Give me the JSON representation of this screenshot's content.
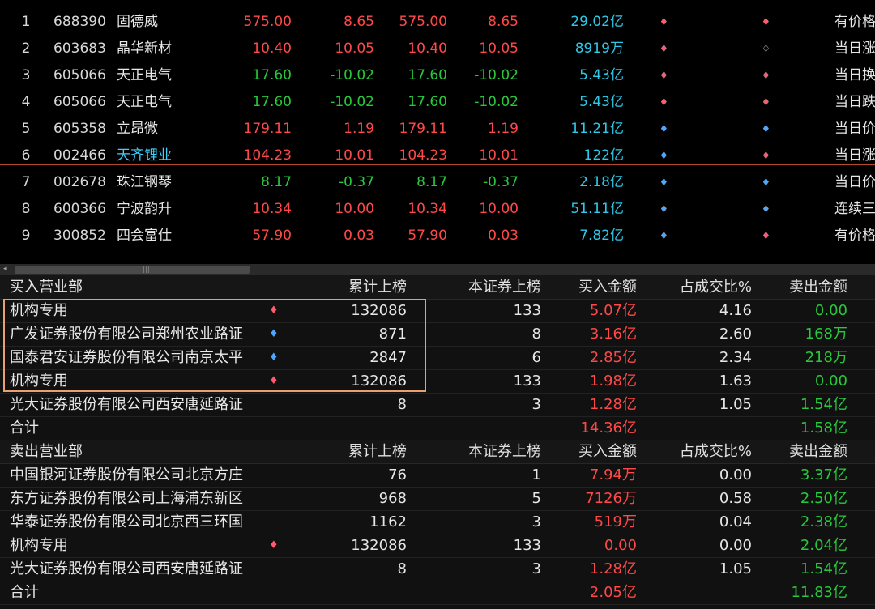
{
  "stocks": [
    {
      "idx": "1",
      "code": "688390",
      "name": "固德威",
      "price": "575.00",
      "change": "8.65",
      "price2": "575.00",
      "change2": "8.65",
      "amount": "29.02亿",
      "rating1": [
        "red",
        "red",
        "red",
        "red",
        "empty"
      ],
      "rating2": [
        "red",
        "red",
        "blue",
        "blue",
        "red"
      ],
      "note": "有价格",
      "dir": "up",
      "nameColor": "normal"
    },
    {
      "idx": "2",
      "code": "603683",
      "name": "晶华新材",
      "price": "10.40",
      "change": "10.05",
      "price2": "10.40",
      "change2": "10.05",
      "amount": "8919万",
      "rating1": [
        "red",
        "red",
        "red",
        "empty",
        "empty"
      ],
      "rating2": [
        "empty",
        "empty",
        "empty",
        "empty",
        "empty"
      ],
      "note": "当日涨",
      "dir": "up",
      "nameColor": "normal"
    },
    {
      "idx": "3",
      "code": "605066",
      "name": "天正电气",
      "price": "17.60",
      "change": "-10.02",
      "price2": "17.60",
      "change2": "-10.02",
      "amount": "5.43亿",
      "rating1": [
        "red",
        "red",
        "blue",
        "red",
        "empty"
      ],
      "rating2": [
        "empty",
        "red",
        "empty",
        "empty",
        "empty"
      ],
      "note": "当日换",
      "dir": "down",
      "nameColor": "normal"
    },
    {
      "idx": "4",
      "code": "605066",
      "name": "天正电气",
      "price": "17.60",
      "change": "-10.02",
      "price2": "17.60",
      "change2": "-10.02",
      "amount": "5.43亿",
      "rating1": [
        "red",
        "red",
        "blue",
        "red",
        "empty"
      ],
      "rating2": [
        "empty",
        "red",
        "empty",
        "empty",
        "empty"
      ],
      "note": "当日跌",
      "dir": "down",
      "nameColor": "normal"
    },
    {
      "idx": "5",
      "code": "605358",
      "name": "立昂微",
      "price": "179.11",
      "change": "1.19",
      "price2": "179.11",
      "change2": "1.19",
      "amount": "11.21亿",
      "rating1": [
        "red",
        "red",
        "blue",
        "blue",
        "blue"
      ],
      "rating2": [
        "red",
        "blue",
        "empty",
        "blue",
        "blue"
      ],
      "note": "当日价",
      "dir": "up",
      "nameColor": "normal"
    },
    {
      "idx": "6",
      "code": "002466",
      "name": "天齐锂业",
      "price": "104.23",
      "change": "10.01",
      "price2": "104.23",
      "change2": "10.01",
      "amount": "122亿",
      "rating1": [
        "red",
        "blue",
        "blue",
        "blue",
        "blue"
      ],
      "rating2": [
        "empty",
        "empty",
        "empty",
        "red",
        "empty"
      ],
      "note": "当日涨",
      "dir": "up",
      "nameColor": "cyan"
    },
    {
      "idx": "7",
      "code": "002678",
      "name": "珠江钢琴",
      "price": "8.17",
      "change": "-0.37",
      "price2": "8.17",
      "change2": "-0.37",
      "amount": "2.18亿",
      "rating1": [
        "red",
        "blue",
        "blue",
        "blue",
        "blue"
      ],
      "rating2": [
        "empty",
        "empty",
        "blue",
        "blue",
        "blue"
      ],
      "note": "当日价",
      "dir": "down",
      "nameColor": "normal"
    },
    {
      "idx": "8",
      "code": "600366",
      "name": "宁波韵升",
      "price": "10.34",
      "change": "10.00",
      "price2": "10.34",
      "change2": "10.00",
      "amount": "51.11亿",
      "rating1": [
        "red",
        "blue",
        "blue",
        "empty",
        "empty"
      ],
      "rating2": [
        "blue",
        "blue",
        "blue",
        "empty",
        "empty"
      ],
      "note": "连续三",
      "dir": "up",
      "nameColor": "normal"
    },
    {
      "idx": "9",
      "code": "300852",
      "name": "四会富仕",
      "price": "57.90",
      "change": "0.03",
      "price2": "57.90",
      "change2": "0.03",
      "amount": "7.82亿",
      "rating1": [
        "red",
        "blue",
        "empty",
        "blue",
        "empty"
      ],
      "rating2": [
        "empty",
        "empty",
        "blue",
        "blue",
        "red"
      ],
      "note": "有价格",
      "dir": "up",
      "nameColor": "normal"
    }
  ],
  "headers": {
    "cum": "累计上榜",
    "this": "本证券上榜",
    "buy": "买入金额",
    "pct": "占成交比%",
    "sell": "卖出金额"
  },
  "buy_section": {
    "title": "买入营业部",
    "rows": [
      {
        "name": "机构专用",
        "gem": "red",
        "cum": "132086",
        "this": "133",
        "buy": "5.07亿",
        "pct": "4.16",
        "sell": "0.00"
      },
      {
        "name": "广发证券股份有限公司郑州农业路证",
        "gem": "blue",
        "cum": "871",
        "this": "8",
        "buy": "3.16亿",
        "pct": "2.60",
        "sell": "168万"
      },
      {
        "name": "国泰君安证券股份有限公司南京太平",
        "gem": "blue",
        "cum": "2847",
        "this": "6",
        "buy": "2.85亿",
        "pct": "2.34",
        "sell": "218万"
      },
      {
        "name": "机构专用",
        "gem": "red",
        "cum": "132086",
        "this": "133",
        "buy": "1.98亿",
        "pct": "1.63",
        "sell": "0.00"
      },
      {
        "name": "光大证券股份有限公司西安唐延路证",
        "gem": "",
        "cum": "8",
        "this": "3",
        "buy": "1.28亿",
        "pct": "1.05",
        "sell": "1.54亿"
      }
    ],
    "total": {
      "label": "合计",
      "buy": "14.36亿",
      "sell": "1.58亿"
    }
  },
  "sell_section": {
    "title": "卖出营业部",
    "rows": [
      {
        "name": "中国银河证券股份有限公司北京方庄",
        "gem": "",
        "cum": "76",
        "this": "1",
        "buy": "7.94万",
        "pct": "0.00",
        "sell": "3.37亿"
      },
      {
        "name": "东方证券股份有限公司上海浦东新区",
        "gem": "",
        "cum": "968",
        "this": "5",
        "buy": "7126万",
        "pct": "0.58",
        "sell": "2.50亿"
      },
      {
        "name": "华泰证券股份有限公司北京西三环国",
        "gem": "",
        "cum": "1162",
        "this": "3",
        "buy": "519万",
        "pct": "0.04",
        "sell": "2.38亿"
      },
      {
        "name": "机构专用",
        "gem": "red",
        "cum": "132086",
        "this": "133",
        "buy": "0.00",
        "pct": "0.00",
        "sell": "2.04亿"
      },
      {
        "name": "光大证券股份有限公司西安唐延路证",
        "gem": "",
        "cum": "8",
        "this": "3",
        "buy": "1.28亿",
        "pct": "1.05",
        "sell": "1.54亿"
      }
    ],
    "total": {
      "label": "合计",
      "buy": "2.05亿",
      "sell": "11.83亿"
    }
  },
  "scrollbar": {
    "left_arrow": "◂",
    "grip": "|||"
  },
  "colors": {
    "up": "#ff4848",
    "down": "#28c83c",
    "amount": "#2ec8e8",
    "highlight": "#e8a070"
  }
}
